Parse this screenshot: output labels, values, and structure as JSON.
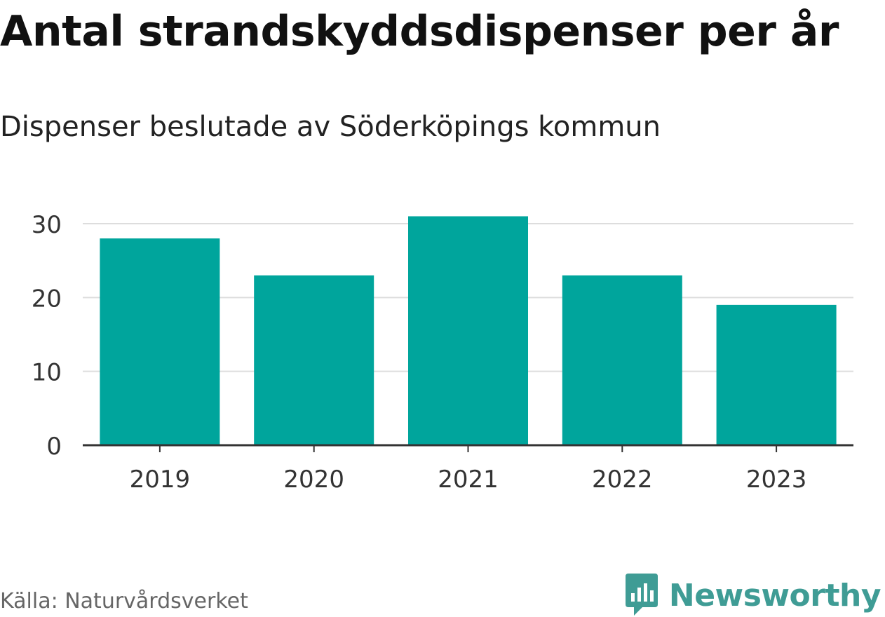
{
  "chart_data": {
    "type": "bar",
    "title": "Antal strandskyddsdispenser per år",
    "subtitle": "Dispenser beslutade av Söderköpings kommun",
    "categories": [
      "2019",
      "2020",
      "2021",
      "2022",
      "2023"
    ],
    "values": [
      28,
      23,
      31,
      23,
      19
    ],
    "ylim": [
      0,
      30
    ],
    "yticks": [
      "0",
      "10",
      "20",
      "30"
    ],
    "xlabel": "",
    "ylabel": "",
    "grid": true,
    "bar_color": "#00a59c",
    "grid_color": "#dddddd",
    "axis_color": "#333333"
  },
  "source": "Källa: Naturvårdsverket",
  "brand": {
    "name": "Newsworthy",
    "icon": "newsworthy-logo-icon",
    "color": "#3f9c95"
  }
}
